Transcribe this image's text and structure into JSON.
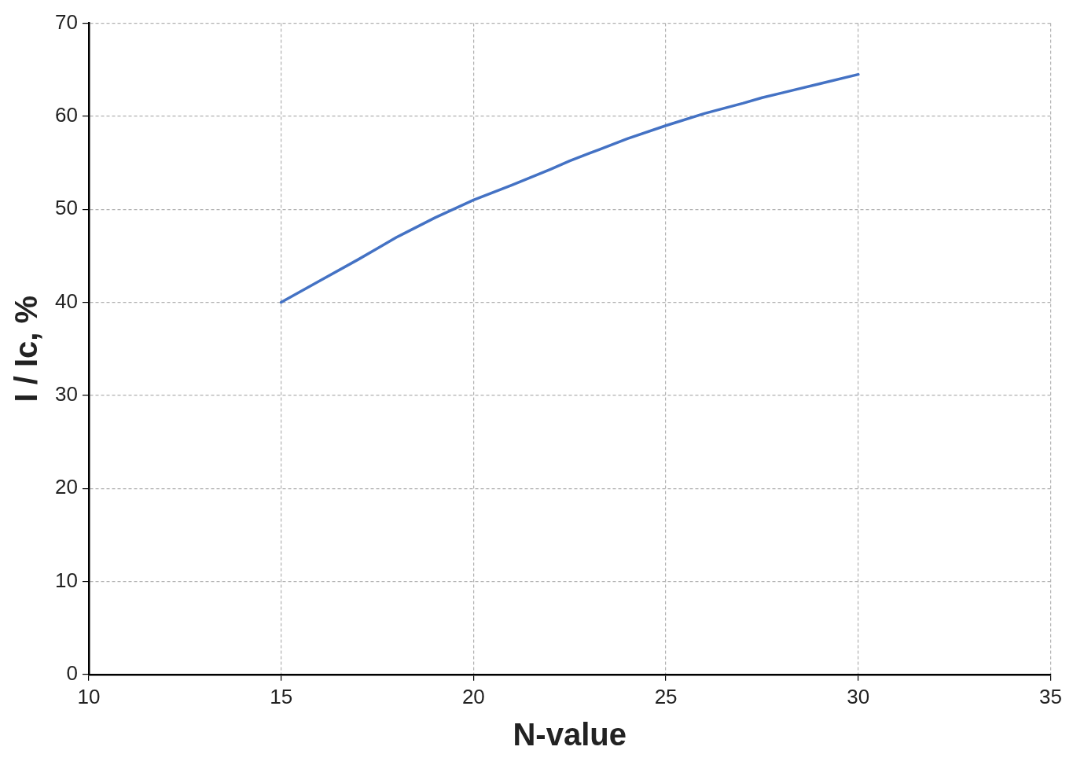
{
  "chart_data": {
    "type": "line",
    "xlabel": "N-value",
    "ylabel": "I / Ic, %",
    "xlim": [
      10,
      35
    ],
    "xticks": [
      10,
      15,
      20,
      25,
      30,
      35
    ],
    "ylim": [
      0,
      70
    ],
    "yticks": [
      0,
      10,
      20,
      30,
      40,
      50,
      60,
      70
    ],
    "grid": true,
    "marker": "none",
    "series": [
      {
        "color": "#4472c4",
        "x": [
          15,
          16,
          17,
          17.5,
          18,
          19,
          20,
          21,
          22,
          22.5,
          23,
          24,
          25,
          26,
          27,
          27.5,
          28,
          29,
          30
        ],
        "values": [
          40,
          42.3,
          44.6,
          45.8,
          47,
          49.1,
          51,
          52.6,
          54.3,
          55.2,
          56,
          57.6,
          59,
          60.3,
          61.4,
          62,
          62.5,
          63.5,
          64.5
        ]
      }
    ]
  }
}
